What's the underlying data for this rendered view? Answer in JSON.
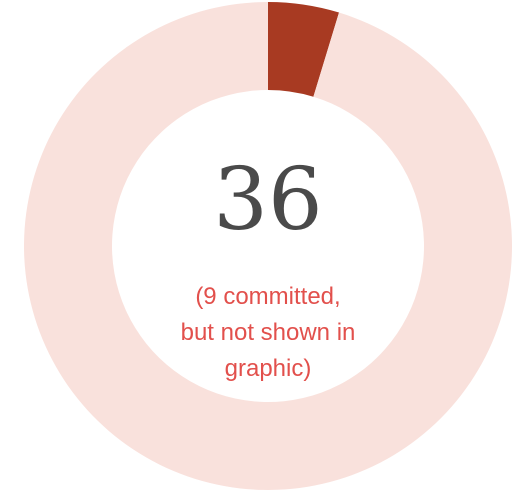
{
  "chart_data": {
    "type": "pie",
    "style": "donut",
    "slices": [
      {
        "value": 4.7,
        "color": "#a83a22"
      },
      {
        "value": 95.3,
        "color": "#f9e1dc"
      }
    ],
    "center_value": "36",
    "center_note": [
      "(9 committed,",
      "but not shown in",
      "graphic)"
    ]
  }
}
